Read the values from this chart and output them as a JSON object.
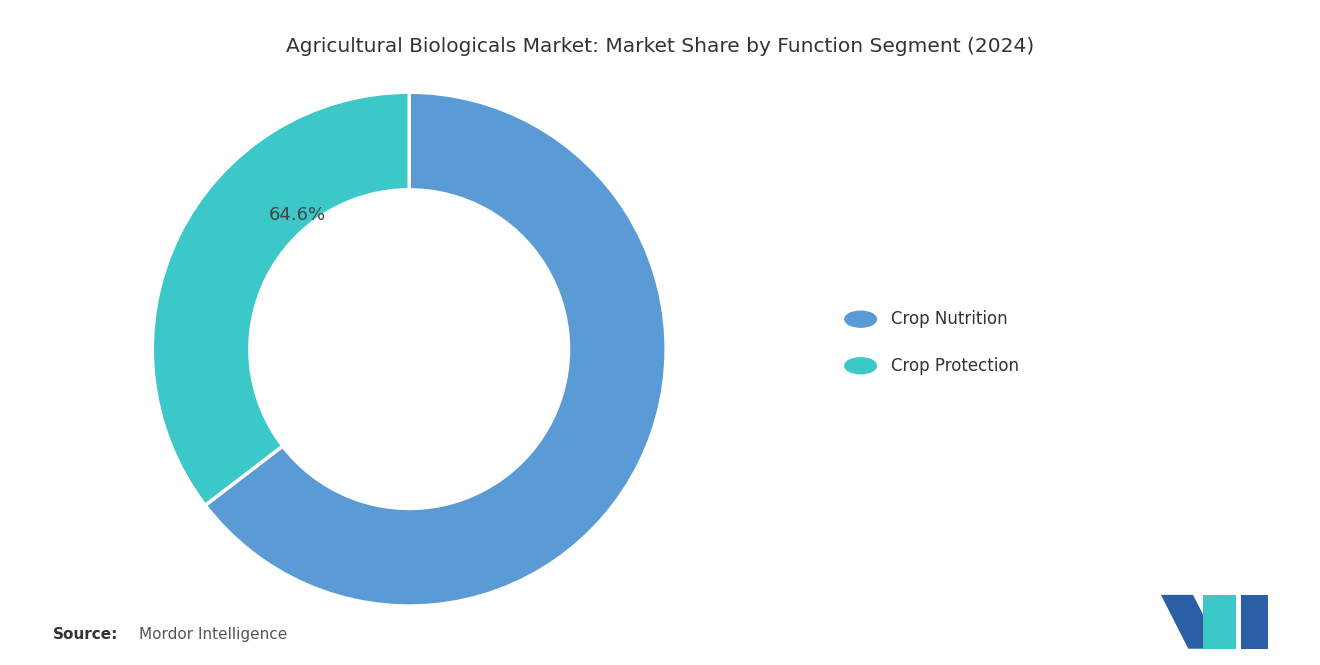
{
  "title": "Agricultural Biologicals Market: Market Share by Function Segment (2024)",
  "segments": [
    "Crop Nutrition",
    "Crop Protection"
  ],
  "values": [
    64.6,
    35.4
  ],
  "colors": [
    "#5B9BD5",
    "#3CC8C8"
  ],
  "label_text": "64.6%",
  "legend_labels": [
    "Crop Nutrition",
    "Crop Protection"
  ],
  "source_bold": "Source:",
  "source_normal": "Mordor Intelligence",
  "background_color": "#FFFFFF",
  "title_fontsize": 14.5,
  "label_fontsize": 13,
  "legend_fontsize": 12,
  "source_fontsize": 11,
  "donut_width": 0.38
}
